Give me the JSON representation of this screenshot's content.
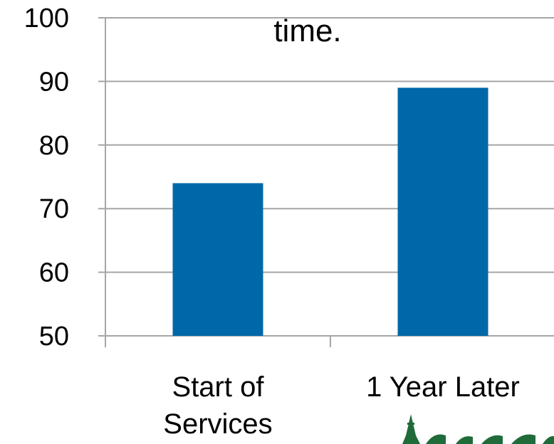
{
  "chart_data": {
    "type": "bar",
    "title": "time.",
    "categories": [
      "Start of Services",
      "1 Year Later"
    ],
    "category_lines": [
      [
        "Start of",
        "Services"
      ],
      [
        "1 Year Later"
      ]
    ],
    "values": [
      74,
      89
    ],
    "ylim": [
      50,
      100
    ],
    "yticks": [
      50,
      60,
      70,
      80,
      90,
      100
    ],
    "xlabel": "",
    "ylabel": "",
    "grid": true,
    "legend": "none",
    "colors": {
      "bar": "#0068A8",
      "grid": "#A6A6A6",
      "axis": "#A6A6A6",
      "logo": "#1F6B3A"
    }
  }
}
